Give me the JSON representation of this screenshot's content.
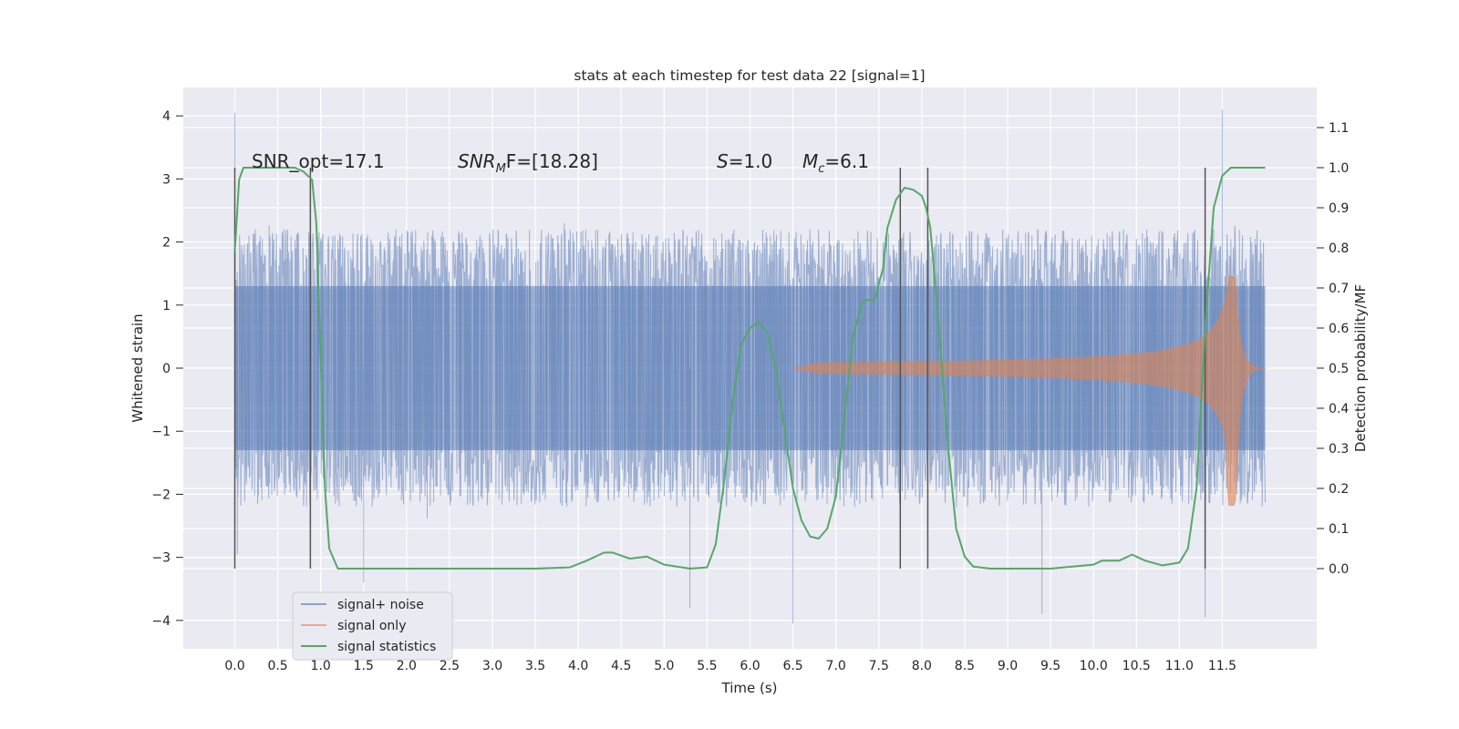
{
  "chart_data": {
    "type": "line",
    "title": "stats at each timestep for test data 22 [signal=1]",
    "xlabel": "Time (s)",
    "ylabel": "Whitened strain",
    "y2label": "Detection probability/MF",
    "xlim": [
      -0.6,
      12.6
    ],
    "ylim": [
      -4.45,
      4.45
    ],
    "y2lim": [
      -0.2,
      1.2
    ],
    "grid": true,
    "legend_position": "lower-left",
    "x_ticks": [
      "0.0",
      "0.5",
      "1.0",
      "1.5",
      "2.0",
      "2.5",
      "3.0",
      "3.5",
      "4.0",
      "4.5",
      "5.0",
      "5.5",
      "6.0",
      "6.5",
      "7.0",
      "7.5",
      "8.0",
      "8.5",
      "9.0",
      "9.5",
      "10.0",
      "10.5",
      "11.0",
      "11.5"
    ],
    "y_ticks": [
      "4",
      "3",
      "2",
      "1",
      "0",
      "−1",
      "−2",
      "−3",
      "−4"
    ],
    "y2_ticks": [
      "1.1",
      "1.0",
      "0.9",
      "0.8",
      "0.7",
      "0.6",
      "0.5",
      "0.4",
      "0.3",
      "0.2",
      "0.1",
      "0.0"
    ],
    "annotations": {
      "snr_opt": "SNR_opt=17.1",
      "snr_mf": "SNR",
      "snr_mf_sub": "M",
      "snr_mf_rest": "F=[18.28]",
      "s_italic": "S",
      "s_rest": "=1.0",
      "mc_italic": "M",
      "mc_sub": "c",
      "mc_rest": "=6.1"
    },
    "colors": {
      "signal_noise": "#4c72b0",
      "signal_only": "#dd8452",
      "signal_statistics": "#55a868",
      "background": "#eaeaf2",
      "vlines": "#555555"
    },
    "series": [
      {
        "name": "signal+ noise",
        "kind": "noise",
        "sigma": 0.72,
        "x_range": [
          0.0,
          12.0
        ],
        "peaks": [
          [
            0.0,
            4.05
          ],
          [
            0.03,
            -2.95
          ],
          [
            11.5,
            4.1
          ],
          [
            11.3,
            -3.95
          ],
          [
            6.5,
            -4.05
          ],
          [
            5.3,
            -3.8
          ],
          [
            9.4,
            -3.9
          ],
          [
            1.5,
            -3.4
          ]
        ]
      },
      {
        "name": "signal only",
        "kind": "chirp",
        "x_range": [
          6.5,
          12.0
        ],
        "merger_time": 11.65,
        "peak_amplitude": 1.45
      },
      {
        "name": "signal statistics",
        "kind": "line",
        "axis": "right",
        "x": [
          0.0,
          0.05,
          0.1,
          0.2,
          0.4,
          0.7,
          0.8,
          0.85,
          0.9,
          0.95,
          1.0,
          1.05,
          1.1,
          1.2,
          1.5,
          2.0,
          2.5,
          3.0,
          3.5,
          3.9,
          4.1,
          4.3,
          4.4,
          4.6,
          4.8,
          5.0,
          5.3,
          5.5,
          5.6,
          5.7,
          5.8,
          5.9,
          6.0,
          6.1,
          6.2,
          6.3,
          6.4,
          6.5,
          6.6,
          6.7,
          6.8,
          6.9,
          7.0,
          7.1,
          7.2,
          7.3,
          7.35,
          7.45,
          7.55,
          7.6,
          7.7,
          7.8,
          7.9,
          8.0,
          8.05,
          8.1,
          8.2,
          8.3,
          8.4,
          8.5,
          8.6,
          8.8,
          9.0,
          9.5,
          10.0,
          10.1,
          10.3,
          10.45,
          10.6,
          10.8,
          11.0,
          11.1,
          11.2,
          11.3,
          11.4,
          11.5,
          11.6,
          12.0
        ],
        "y": [
          0.79,
          0.97,
          1.0,
          1.0,
          1.0,
          1.0,
          0.99,
          0.98,
          0.97,
          0.86,
          0.52,
          0.2,
          0.05,
          0.0,
          0.0,
          0.0,
          0.0,
          0.0,
          0.0,
          0.003,
          0.02,
          0.04,
          0.04,
          0.025,
          0.03,
          0.01,
          0.0,
          0.003,
          0.06,
          0.22,
          0.42,
          0.56,
          0.6,
          0.615,
          0.59,
          0.5,
          0.35,
          0.2,
          0.12,
          0.08,
          0.075,
          0.1,
          0.18,
          0.38,
          0.58,
          0.66,
          0.67,
          0.67,
          0.75,
          0.85,
          0.92,
          0.95,
          0.945,
          0.93,
          0.9,
          0.85,
          0.6,
          0.32,
          0.1,
          0.03,
          0.005,
          0.0,
          0.0,
          0.0,
          0.01,
          0.02,
          0.02,
          0.035,
          0.02,
          0.008,
          0.015,
          0.05,
          0.2,
          0.6,
          0.9,
          0.98,
          1.0,
          1.0
        ]
      }
    ],
    "vlines_x": [
      0.0,
      0.88,
      7.75,
      8.07,
      11.3
    ]
  }
}
